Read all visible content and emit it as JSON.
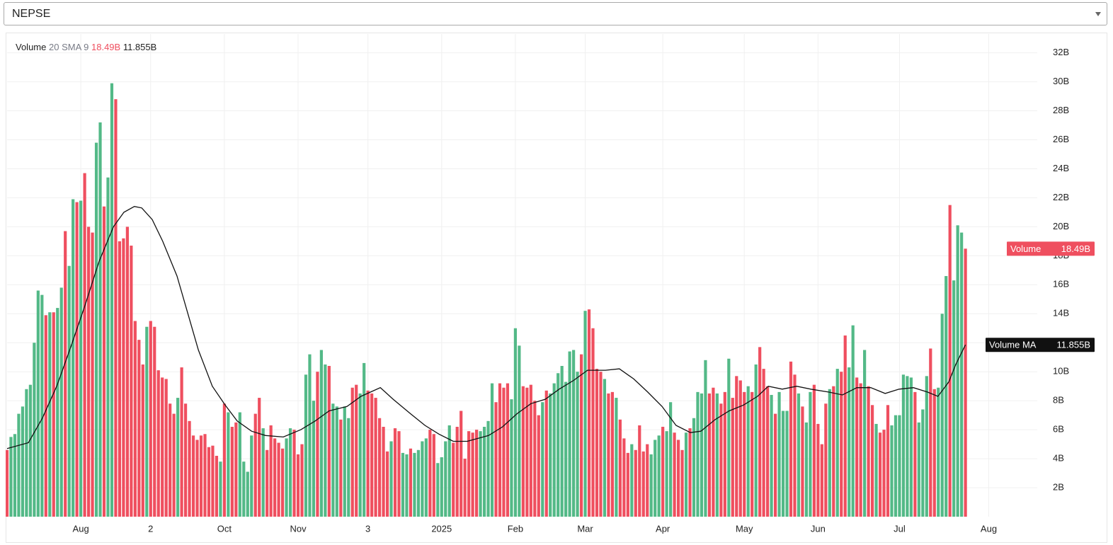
{
  "header": {
    "select": "NEPSE"
  },
  "chart_data": {
    "type": "bar",
    "indicator_params": "20 SMA 9",
    "palette": {
      "u": "#53b987",
      "d": "#ef4f5f"
    },
    "series": [
      {
        "name": "Volume",
        "last_label": "18.49B",
        "directions": [
          "d",
          "u",
          "u",
          "u",
          "u",
          "u",
          "u",
          "u",
          "u",
          "u",
          "d",
          "u",
          "d",
          "u",
          "u",
          "d",
          "u",
          "u",
          "d",
          "u",
          "d",
          "d",
          "d",
          "u",
          "u",
          "d",
          "u",
          "u",
          "d",
          "d",
          "d",
          "d",
          "d",
          "d",
          "d",
          "d",
          "u",
          "d",
          "d",
          "d",
          "d",
          "d",
          "d",
          "d",
          "u",
          "d",
          "d",
          "d",
          "d",
          "d",
          "d",
          "d",
          "d",
          "d",
          "d",
          "u",
          "d",
          "u",
          "d",
          "d",
          "u",
          "u",
          "u",
          "u",
          "d",
          "d",
          "u",
          "d",
          "d",
          "d",
          "d",
          "d",
          "u",
          "u",
          "d",
          "d",
          "d",
          "u",
          "u",
          "u",
          "d",
          "u",
          "u",
          "d",
          "u",
          "u",
          "d",
          "u",
          "u",
          "d",
          "d",
          "u",
          "u",
          "d",
          "d",
          "d",
          "d",
          "d",
          "d",
          "u",
          "d",
          "d",
          "u",
          "u",
          "d",
          "u",
          "u",
          "u",
          "u",
          "d",
          "d",
          "u",
          "u",
          "u",
          "u",
          "d",
          "d",
          "d",
          "d",
          "d",
          "d",
          "d",
          "u",
          "u",
          "u",
          "u",
          "d",
          "d",
          "d",
          "d",
          "u",
          "u",
          "u",
          "d",
          "d",
          "d",
          "d",
          "d",
          "u",
          "d",
          "u",
          "u",
          "u",
          "u",
          "u",
          "u",
          "u",
          "u",
          "d",
          "u",
          "d",
          "d",
          "d",
          "d",
          "u",
          "d",
          "d",
          "u",
          "d",
          "d",
          "d",
          "u",
          "d",
          "d",
          "d",
          "d",
          "u",
          "u",
          "u",
          "d",
          "u",
          "u",
          "d",
          "d",
          "d",
          "u",
          "d",
          "u",
          "u",
          "u",
          "u",
          "d",
          "d",
          "u",
          "d",
          "d",
          "u",
          "d",
          "d",
          "d",
          "d",
          "u",
          "d",
          "u",
          "d",
          "d",
          "d",
          "u",
          "d",
          "u",
          "u",
          "u",
          "d",
          "d",
          "u",
          "d",
          "u",
          "u",
          "d",
          "d",
          "d",
          "d",
          "u",
          "d",
          "u",
          "d",
          "d",
          "u",
          "u",
          "d",
          "d",
          "u",
          "d",
          "d",
          "u",
          "d",
          "d",
          "d",
          "u",
          "u",
          "u",
          "u",
          "u",
          "u",
          "d",
          "u",
          "u",
          "u",
          "d",
          "d",
          "u",
          "u",
          "u",
          "d",
          "u",
          "u",
          "u",
          "d"
        ],
        "values": [
          4.6,
          5.5,
          5.7,
          7.1,
          7.6,
          8.8,
          9.1,
          12.0,
          15.6,
          15.3,
          13.9,
          14.1,
          14.1,
          14.4,
          15.8,
          19.7,
          17.3,
          21.9,
          21.7,
          21.8,
          23.7,
          20.0,
          19.6,
          25.8,
          27.2,
          21.4,
          23.4,
          29.9,
          28.8,
          19.0,
          19.2,
          20.0,
          18.7,
          13.5,
          12.2,
          10.5,
          13.1,
          13.5,
          13.1,
          10.1,
          9.6,
          9.5,
          7.8,
          7.1,
          8.2,
          10.3,
          7.8,
          6.6,
          5.6,
          5.3,
          5.6,
          5.7,
          4.8,
          4.9,
          4.2,
          3.8,
          7.8,
          7.2,
          6.2,
          6.5,
          7.2,
          3.8,
          3.1,
          5.6,
          7.1,
          8.2,
          6.1,
          4.6,
          6.3,
          5.4,
          5.1,
          4.7,
          5.4,
          6.1,
          6.0,
          4.3,
          5.0,
          9.8,
          11.2,
          8.0,
          10.0,
          11.5,
          10.5,
          10.4,
          7.8,
          7.6,
          6.7,
          7.6,
          6.8,
          8.9,
          9.1,
          8.5,
          10.6,
          8.7,
          8.5,
          8.2,
          6.8,
          6.2,
          4.5,
          5.2,
          6.1,
          5.9,
          4.4,
          4.3,
          4.7,
          4.4,
          4.6,
          5.2,
          5.4,
          6.0,
          5.7,
          3.7,
          4.1,
          5.2,
          6.3,
          5.1,
          6.2,
          7.3,
          4.0,
          5.9,
          5.8,
          6.0,
          5.9,
          6.2,
          6.6,
          9.2,
          7.9,
          9.2,
          8.9,
          9.2,
          8.1,
          13.0,
          11.8,
          9.0,
          8.9,
          9.1,
          8.0,
          7.0,
          7.9,
          8.7,
          8.5,
          9.2,
          9.9,
          10.4,
          9.3,
          11.4,
          11.5,
          10.0,
          11.2,
          14.2,
          14.3,
          13.0,
          10.2,
          10.0,
          9.5,
          8.5,
          8.6,
          8.2,
          6.7,
          5.4,
          4.4,
          5.0,
          4.6,
          6.3,
          4.5,
          5.0,
          4.3,
          5.3,
          5.6,
          6.2,
          5.9,
          7.9,
          5.8,
          5.3,
          4.6,
          5.8,
          6.1,
          6.8,
          8.6,
          8.5,
          10.8,
          8.5,
          8.9,
          8.5,
          7.8,
          8.6,
          10.9,
          8.2,
          9.7,
          9.4,
          8.6,
          9.0,
          8.6,
          10.5,
          11.7,
          10.2,
          9.0,
          8.4,
          7.1,
          8.6,
          7.3,
          7.3,
          10.7,
          9.8,
          8.5,
          7.6,
          6.5,
          8.6,
          9.1,
          6.4,
          5.0,
          7.8,
          8.8,
          9.0,
          10.2,
          10.0,
          12.5,
          10.3,
          13.2,
          9.6,
          9.2,
          11.5,
          9.0,
          7.7,
          6.4,
          5.8,
          6.0,
          7.7,
          6.3,
          7.0,
          7.0,
          9.8,
          9.7,
          9.6,
          8.6,
          6.5,
          7.4,
          9.7,
          11.6,
          8.8,
          8.9,
          14.0,
          16.6,
          21.5,
          16.3,
          20.1,
          19.6,
          18.49
        ]
      },
      {
        "name": "Volume MA",
        "last_label": "11.855B",
        "color": "#111111",
        "x": [
          0,
          5.5,
          9.1,
          12.8,
          16.4,
          20.1,
          23.7,
          27.4,
          30.1,
          32.8,
          34.7,
          37.4,
          40.1,
          43.8,
          46.5,
          49.3,
          52.9,
          56.2,
          59.3,
          63.0,
          66.6,
          71.2,
          75.7,
          79.4,
          83.0,
          87.6,
          91.2,
          96.2,
          99.5,
          104.0,
          107.7,
          111.3,
          115.0,
          118.6,
          124.1,
          127.7,
          131.4,
          135.0,
          138.7,
          142.3,
          146.0,
          149.6,
          154.2,
          157.8,
          161.5,
          165.1,
          168.8,
          172.4,
          176.1,
          178.8,
          182.5,
          186.1,
          189.8,
          193.4,
          196.2,
          199.8,
          203.5,
          207.1,
          211.7,
          215.3,
          219.0,
          222.6,
          226.3,
          229.9,
          233.6,
          237.2,
          239.9,
          242.7,
          244.5,
          247
        ],
        "values": [
          4.7,
          5.1,
          6.8,
          9.0,
          11.7,
          14.6,
          17.6,
          20.0,
          21.0,
          21.4,
          21.3,
          20.5,
          19.0,
          16.6,
          14.1,
          11.5,
          9.0,
          7.7,
          6.6,
          5.9,
          5.6,
          5.5,
          6.0,
          6.6,
          7.3,
          7.6,
          8.3,
          8.9,
          8.1,
          7.1,
          6.3,
          5.7,
          5.2,
          5.2,
          5.6,
          6.2,
          7.1,
          7.8,
          8.1,
          8.8,
          9.4,
          10.1,
          10.1,
          10.2,
          9.5,
          8.6,
          7.6,
          6.3,
          5.8,
          5.9,
          6.7,
          7.3,
          7.7,
          8.3,
          9.0,
          8.8,
          9.0,
          8.8,
          8.6,
          8.4,
          8.9,
          8.9,
          8.5,
          8.8,
          8.9,
          8.6,
          8.3,
          9.3,
          10.5,
          11.855
        ]
      }
    ],
    "xlim": [
      0,
      265.5
    ],
    "xticks": [
      {
        "value": 19,
        "label": "Aug"
      },
      {
        "value": 37,
        "label": "2"
      },
      {
        "value": 56,
        "label": "Oct"
      },
      {
        "value": 75,
        "label": "Nov"
      },
      {
        "value": 93,
        "label": "3"
      },
      {
        "value": 112,
        "label": "2025"
      },
      {
        "value": 131,
        "label": "Feb"
      },
      {
        "value": 149,
        "label": "Mar"
      },
      {
        "value": 169,
        "label": "Apr"
      },
      {
        "value": 190,
        "label": "May"
      },
      {
        "value": 209,
        "label": "Jun"
      },
      {
        "value": 230,
        "label": "Jul"
      },
      {
        "value": 253,
        "label": "Aug"
      }
    ],
    "ylim": [
      0,
      33.3
    ],
    "yticks": [
      {
        "value": 2,
        "label": "2B"
      },
      {
        "value": 4,
        "label": "4B"
      },
      {
        "value": 6,
        "label": "6B"
      },
      {
        "value": 8,
        "label": "8B"
      },
      {
        "value": 10,
        "label": "10B"
      },
      {
        "value": 12,
        "label": "12B"
      },
      {
        "value": 14,
        "label": "14B"
      },
      {
        "value": 16,
        "label": "16B"
      },
      {
        "value": 18,
        "label": "18B"
      },
      {
        "value": 20,
        "label": "20B"
      },
      {
        "value": 22,
        "label": "22B"
      },
      {
        "value": 24,
        "label": "24B"
      },
      {
        "value": 26,
        "label": "26B"
      },
      {
        "value": 28,
        "label": "28B"
      },
      {
        "value": 30,
        "label": "30B"
      },
      {
        "value": 32,
        "label": "32B"
      }
    ],
    "grid": true
  }
}
